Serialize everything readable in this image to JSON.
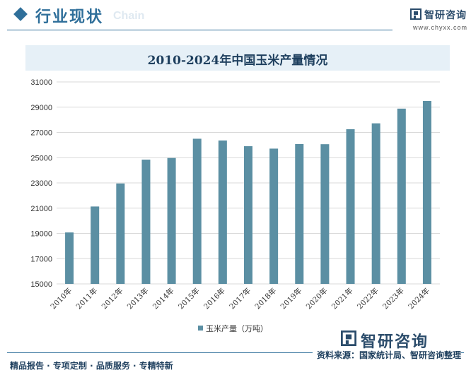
{
  "header": {
    "title": "行业现状",
    "subtitle_watermark": "Chain",
    "logo_name": "智研咨询",
    "logo_url": "www.chyxx.com"
  },
  "footer": {
    "left_text": "精品报告 · 专项定制 · 品质服务 · 专精特新",
    "source_text": "资料来源：国家统计局、智研咨询整理",
    "brand_name": "智研咨询"
  },
  "colors": {
    "bar": "#5b8fa3",
    "accent": "#2f6f9a",
    "grid": "#d9d9d9"
  },
  "chart_data": {
    "type": "bar",
    "title": "2010-2024年中国玉米产量情况",
    "categories": [
      "2010年",
      "2011年",
      "2012年",
      "2013年",
      "2014年",
      "2015年",
      "2016年",
      "2017年",
      "2018年",
      "2019年",
      "2020年",
      "2021年",
      "2022年",
      "2023年",
      "2024年"
    ],
    "series": [
      {
        "name": "玉米产量（万吨）",
        "values": [
          19075,
          21132,
          22956,
          24845,
          24976,
          26499,
          26361,
          25907,
          25717,
          26078,
          26067,
          27255,
          27720,
          28884,
          29492
        ]
      }
    ],
    "ylim": [
      15000,
      31000
    ],
    "yticks": [
      "15000",
      "17000",
      "19000",
      "21000",
      "23000",
      "25000",
      "27000",
      "29000",
      "31000"
    ],
    "legend_position": "bottom",
    "grid": true
  }
}
